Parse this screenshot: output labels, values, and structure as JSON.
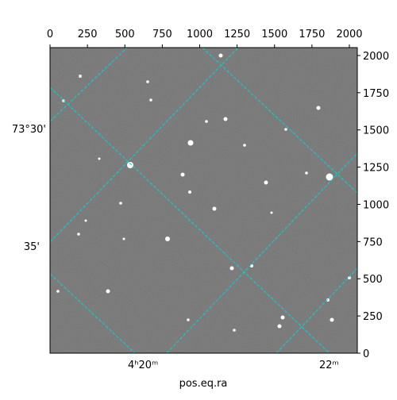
{
  "chart_data": {
    "type": "image",
    "xlabel": "pos.eq.ra",
    "xlim": [
      0,
      2053
    ],
    "ylim": [
      0,
      2053
    ],
    "xticks": [
      0,
      250,
      500,
      750,
      1000,
      1250,
      1500,
      1750,
      2000
    ],
    "yticks": [
      0,
      250,
      500,
      750,
      1000,
      1250,
      1500,
      1750,
      2000
    ],
    "left_labels": [
      "73°30'",
      "35'"
    ],
    "bottom_labels": [
      "4ʰ20ᵐ",
      "22ᵐ"
    ],
    "grid_color": "#00d8d8"
  }
}
